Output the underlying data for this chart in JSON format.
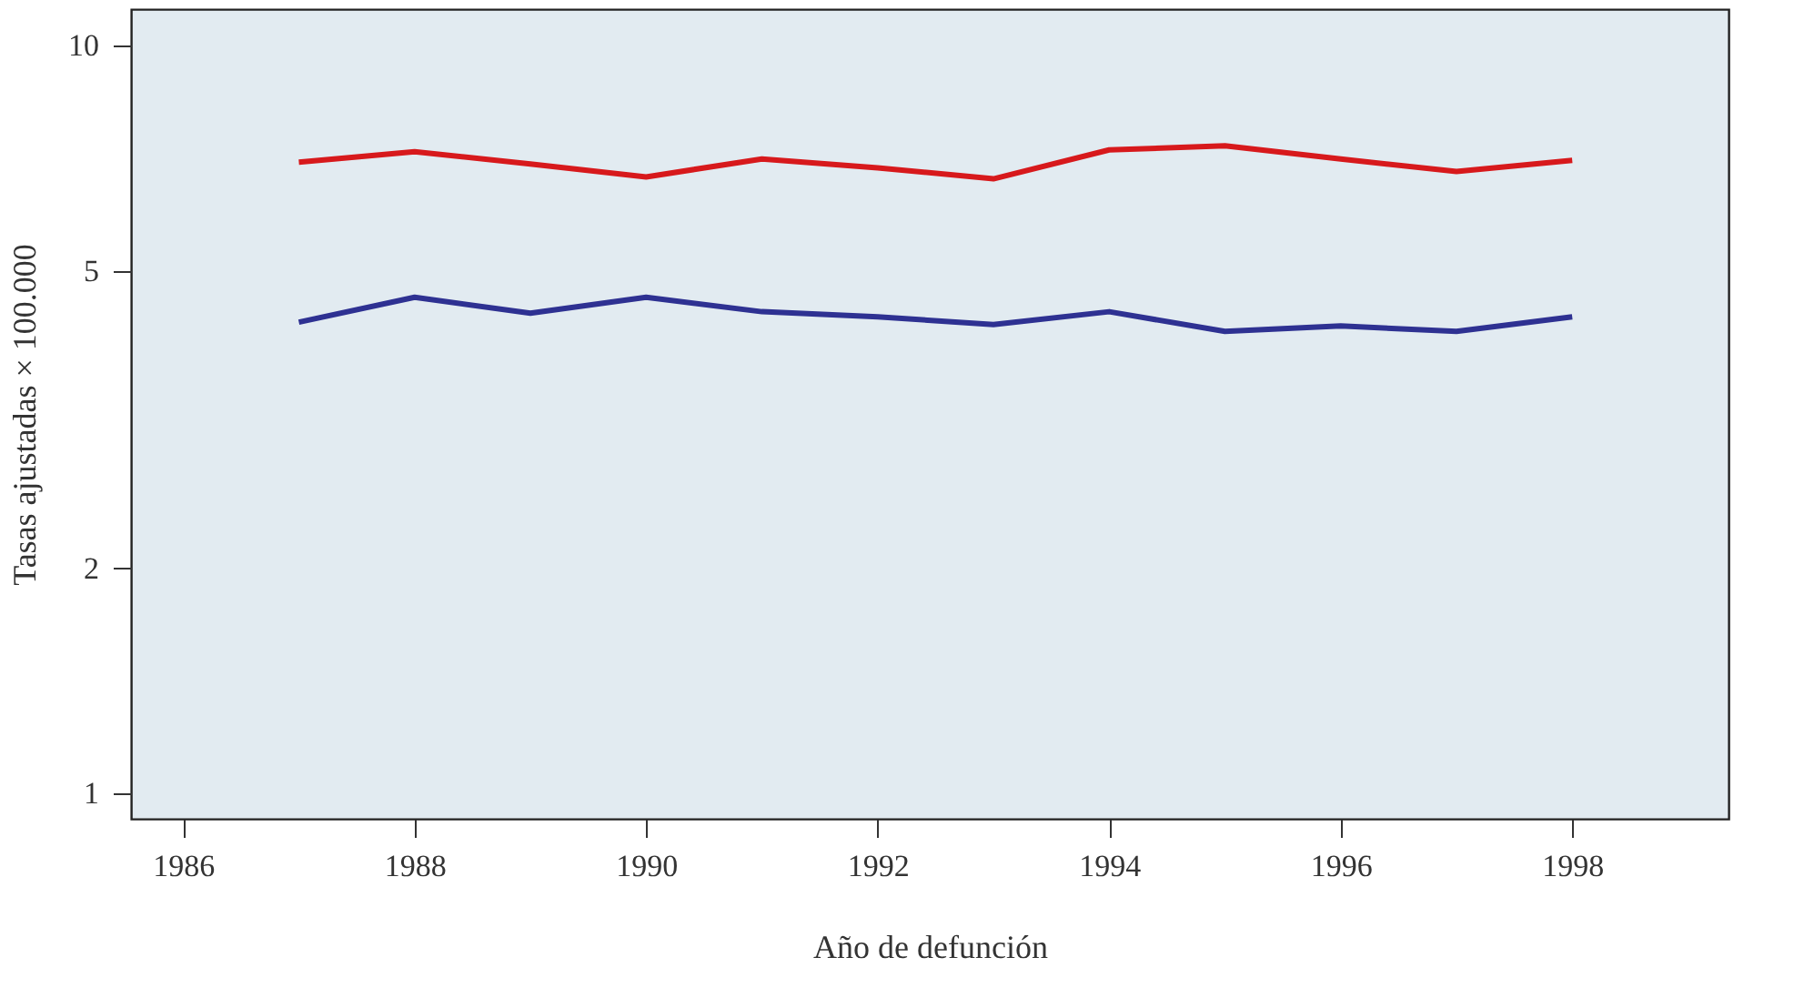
{
  "chart_data": {
    "type": "line",
    "xlabel": "Año de defunción",
    "ylabel": "Tasas ajustadas × 100.000",
    "log": "y",
    "grid": false,
    "legend": false,
    "marker": "none",
    "line_style": "solid",
    "x": [
      1987,
      1988,
      1989,
      1990,
      1991,
      1992,
      1993,
      1994,
      1995,
      1996,
      1997,
      1998
    ],
    "xlim": [
      1985.55,
      1999.35
    ],
    "xticks": [
      1986,
      1988,
      1990,
      1992,
      1994,
      1996,
      1998
    ],
    "ylim": [
      0.925,
      11.2
    ],
    "yticks": [
      1,
      2,
      5,
      10
    ],
    "series": [
      {
        "color": "#d7191c",
        "values": [
          6.99,
          7.22,
          6.95,
          6.68,
          7.06,
          6.87,
          6.64,
          7.26,
          7.35,
          7.06,
          6.79,
          7.03
        ]
      },
      {
        "color": "#2e3192",
        "values": [
          4.27,
          4.61,
          4.39,
          4.61,
          4.41,
          4.34,
          4.24,
          4.41,
          4.15,
          4.22,
          4.15,
          4.34
        ]
      }
    ]
  }
}
